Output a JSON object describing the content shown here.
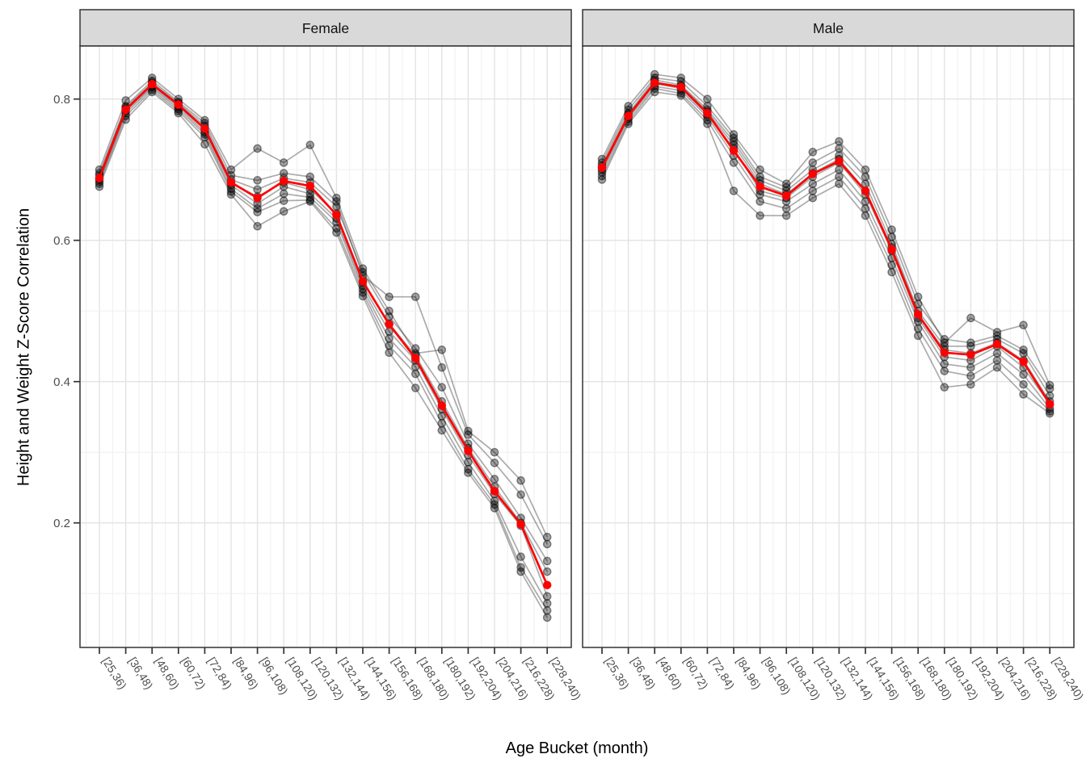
{
  "chart_data": {
    "type": "line",
    "title": "",
    "xlabel": "Age Bucket (month)",
    "ylabel": "Height and Weight Z-Score Correlation",
    "legend": "none",
    "grid": true,
    "categories": [
      "[25,36)",
      "[36,48)",
      "[48,60)",
      "[60,72)",
      "[72,84)",
      "[84,96)",
      "[96,108)",
      "[108,120)",
      "[120,132)",
      "[132,144)",
      "[144,156)",
      "[156,168)",
      "[168,180)",
      "[180,192)",
      "[192,204)",
      "[204,216)",
      "[216,228)",
      "[228,240)"
    ],
    "y_ticks": [
      0.2,
      0.4,
      0.6,
      0.8
    ],
    "y_tick_labels": [
      "0.2",
      "0.4",
      "0.6",
      "0.8"
    ],
    "y_minor_ticks": [
      0.1,
      0.3,
      0.5,
      0.7
    ],
    "ylim": [
      0.03,
      0.87
    ],
    "style": {
      "mean_color": "#FF0000",
      "point_color": "#000000",
      "grid_major_color": "#E3E3E3",
      "grid_minor_color": "#F1F1F1",
      "panel_border_color": "#333333",
      "strip_fill": "#D9D9D9",
      "axis_text_color": "#4D4D4D"
    },
    "facets": [
      {
        "label": "Female",
        "mean_series": [
          0.688,
          0.785,
          0.821,
          0.792,
          0.758,
          0.682,
          0.66,
          0.684,
          0.677,
          0.636,
          0.542,
          0.481,
          0.433,
          0.366,
          0.302,
          0.245,
          0.198,
          0.112
        ],
        "gray_series": [
          [
            0.7,
            0.798,
            0.83,
            0.8,
            0.77,
            0.7,
            0.73,
            0.71,
            0.735,
            0.66,
            0.56,
            0.5,
            0.44,
            0.445,
            0.33,
            0.3,
            0.26,
            0.18
          ],
          [
            0.695,
            0.79,
            0.826,
            0.796,
            0.766,
            0.692,
            0.685,
            0.695,
            0.69,
            0.655,
            0.55,
            0.52,
            0.52,
            0.42,
            0.325,
            0.285,
            0.24,
            0.17
          ],
          [
            0.692,
            0.788,
            0.823,
            0.794,
            0.762,
            0.686,
            0.672,
            0.688,
            0.682,
            0.648,
            0.555,
            0.492,
            0.447,
            0.392,
            0.312,
            0.262,
            0.207,
            0.146
          ],
          [
            0.688,
            0.786,
            0.82,
            0.791,
            0.757,
            0.681,
            0.662,
            0.682,
            0.672,
            0.638,
            0.541,
            0.482,
            0.437,
            0.372,
            0.306,
            0.251,
            0.2,
            0.131
          ],
          [
            0.686,
            0.783,
            0.818,
            0.789,
            0.753,
            0.678,
            0.652,
            0.676,
            0.666,
            0.631,
            0.536,
            0.471,
            0.43,
            0.361,
            0.296,
            0.241,
            0.196,
            0.096
          ],
          [
            0.683,
            0.78,
            0.816,
            0.786,
            0.75,
            0.673,
            0.645,
            0.666,
            0.661,
            0.626,
            0.531,
            0.461,
            0.421,
            0.351,
            0.286,
            0.231,
            0.152,
            0.086
          ],
          [
            0.68,
            0.776,
            0.813,
            0.783,
            0.746,
            0.669,
            0.64,
            0.656,
            0.657,
            0.617,
            0.526,
            0.451,
            0.411,
            0.341,
            0.276,
            0.226,
            0.137,
            0.076
          ],
          [
            0.676,
            0.771,
            0.81,
            0.78,
            0.736,
            0.665,
            0.62,
            0.641,
            0.655,
            0.611,
            0.521,
            0.441,
            0.391,
            0.331,
            0.271,
            0.221,
            0.131,
            0.066
          ]
        ]
      },
      {
        "label": "Male",
        "mean_series": [
          0.703,
          0.776,
          0.823,
          0.817,
          0.78,
          0.727,
          0.676,
          0.663,
          0.694,
          0.712,
          0.67,
          0.587,
          0.495,
          0.441,
          0.438,
          0.453,
          0.428,
          0.368
        ],
        "gray_series": [
          [
            0.715,
            0.79,
            0.835,
            0.83,
            0.8,
            0.75,
            0.7,
            0.68,
            0.725,
            0.74,
            0.7,
            0.615,
            0.52,
            0.455,
            0.49,
            0.47,
            0.48,
            0.395
          ],
          [
            0.71,
            0.785,
            0.83,
            0.825,
            0.79,
            0.745,
            0.69,
            0.675,
            0.71,
            0.73,
            0.69,
            0.605,
            0.51,
            0.46,
            0.455,
            0.465,
            0.445,
            0.39
          ],
          [
            0.706,
            0.78,
            0.827,
            0.82,
            0.785,
            0.74,
            0.685,
            0.67,
            0.7,
            0.72,
            0.68,
            0.595,
            0.5,
            0.45,
            0.45,
            0.46,
            0.44,
            0.38
          ],
          [
            0.703,
            0.778,
            0.824,
            0.818,
            0.782,
            0.735,
            0.68,
            0.665,
            0.695,
            0.715,
            0.67,
            0.59,
            0.495,
            0.445,
            0.44,
            0.455,
            0.43,
            0.372
          ],
          [
            0.7,
            0.775,
            0.822,
            0.815,
            0.778,
            0.73,
            0.67,
            0.66,
            0.69,
            0.71,
            0.665,
            0.585,
            0.49,
            0.435,
            0.43,
            0.45,
            0.42,
            0.368
          ],
          [
            0.696,
            0.772,
            0.818,
            0.812,
            0.775,
            0.72,
            0.665,
            0.655,
            0.68,
            0.7,
            0.655,
            0.575,
            0.485,
            0.425,
            0.42,
            0.44,
            0.41,
            0.362
          ],
          [
            0.691,
            0.768,
            0.815,
            0.808,
            0.77,
            0.71,
            0.655,
            0.645,
            0.67,
            0.69,
            0.645,
            0.565,
            0.475,
            0.415,
            0.408,
            0.43,
            0.396,
            0.358
          ],
          [
            0.686,
            0.765,
            0.81,
            0.805,
            0.765,
            0.67,
            0.635,
            0.635,
            0.66,
            0.68,
            0.635,
            0.555,
            0.465,
            0.392,
            0.396,
            0.42,
            0.382,
            0.355
          ]
        ]
      }
    ]
  }
}
